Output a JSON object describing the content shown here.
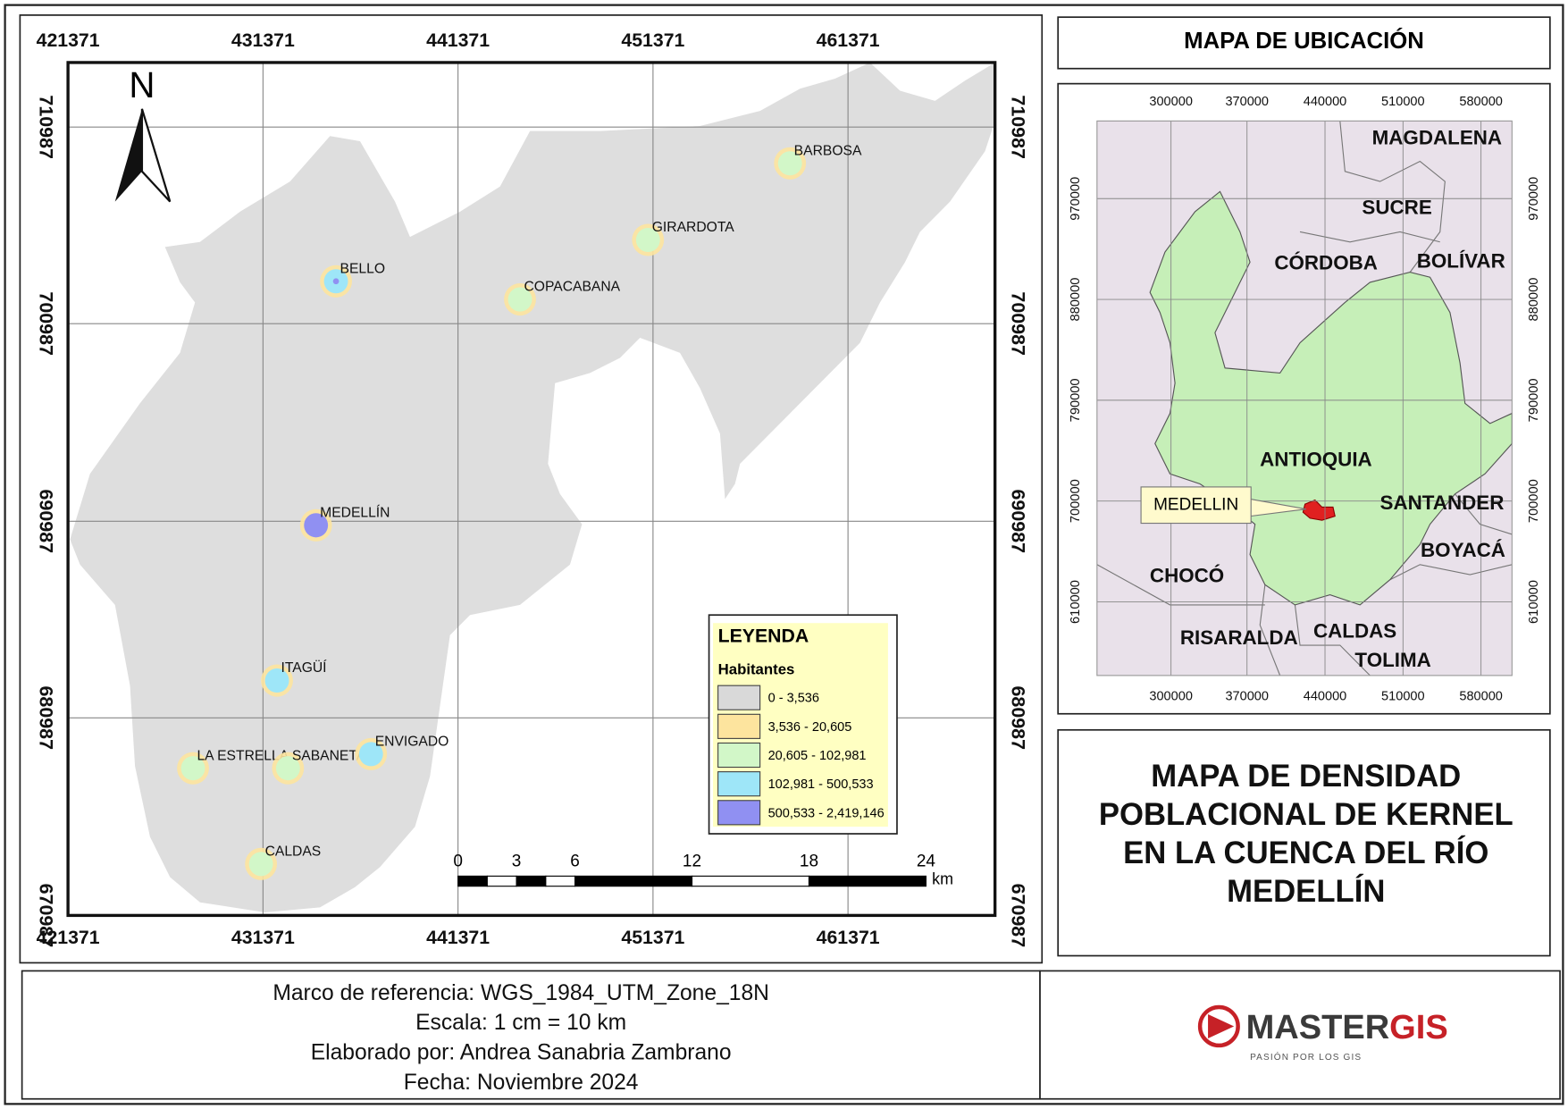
{
  "main_map": {
    "x_coords": [
      "421371",
      "431371",
      "441371",
      "451371",
      "461371"
    ],
    "y_coords": [
      "710987",
      "700987",
      "690987",
      "680987",
      "670987"
    ],
    "north": "N",
    "places": [
      "BARBOSA",
      "GIRARDOTA",
      "COPACABANA",
      "BELLO",
      "MEDELLÍN",
      "ITAGÜÍ",
      "LA ESTRELLA",
      "SABANETA",
      "ENVIGADO",
      "CALDAS"
    ],
    "legend": {
      "title": "LEYENDA",
      "subtitle": "Habitantes",
      "classes": [
        {
          "label": "0 - 3,536",
          "color": "#d9d9d9"
        },
        {
          "label": "3,536 - 20,605",
          "color": "#fde49e"
        },
        {
          "label": "20,605 - 102,981",
          "color": "#d2f7c8"
        },
        {
          "label": "102,981 - 500,533",
          "color": "#9ee6f8"
        },
        {
          "label": "500,533 - 2,419,146",
          "color": "#9090f2"
        }
      ]
    },
    "scale_bar": {
      "ticks": [
        0,
        3,
        6,
        12,
        18,
        24
      ],
      "unit": "km"
    }
  },
  "location_map": {
    "title": "MAPA DE UBICACIÓN",
    "x_coords": [
      "300000",
      "370000",
      "440000",
      "510000",
      "580000"
    ],
    "y_coords": [
      "970000",
      "880000",
      "790000",
      "700000",
      "610000"
    ],
    "regions": [
      "MAGDALENA",
      "SUCRE",
      "CÓRDOBA",
      "BOLÍVAR",
      "ANTIOQUIA",
      "SANTANDER",
      "BOYACÁ",
      "CHOCÓ",
      "RISARALDA",
      "CALDAS",
      "TOLIMA"
    ],
    "callout": "MEDELLIN"
  },
  "title_lines": [
    "MAPA DE DENSIDAD",
    "POBLACIONAL DE KERNEL",
    "EN LA CUENCA DEL RÍO",
    "MEDELLÍN"
  ],
  "footer_lines": [
    "Marco de referencia: WGS_1984_UTM_Zone_18N",
    "Escala: 1 cm = 10 km",
    "Elaborado por: Andrea Sanabria Zambrano",
    "Fecha: Noviembre 2024"
  ],
  "logo": {
    "brand": "MASTER",
    "brand_accent": "GIS",
    "tagline": "PASIÓN POR LOS GIS"
  }
}
